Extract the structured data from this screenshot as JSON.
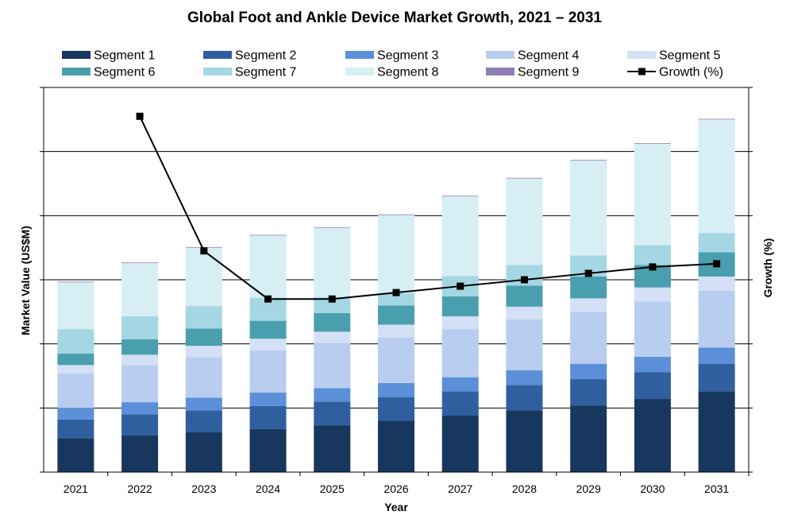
{
  "chart_data": {
    "type": "bar",
    "stacked": true,
    "title": "Global Foot and Ankle Device Market Growth, 2021 – 2031",
    "xlabel": "Year",
    "ylabel": "Market Value (US$M)",
    "y2label": "Growth (%)",
    "categories": [
      "2021",
      "2022",
      "2023",
      "2024",
      "2025",
      "2026",
      "2027",
      "2028",
      "2029",
      "2030",
      "2031"
    ],
    "ylim": [
      0,
      600
    ],
    "y2lim": [
      0,
      12
    ],
    "y_tick_labels_shown": false,
    "grid": true,
    "legend_position": "top",
    "series": [
      {
        "name": "Segment 1",
        "color": "#17375e",
        "values": [
          53,
          57,
          62,
          67,
          73,
          80,
          88,
          96,
          104,
          114,
          126
        ]
      },
      {
        "name": "Segment 2",
        "color": "#2f5f9e",
        "values": [
          29,
          33,
          34,
          36,
          37,
          37,
          38,
          40,
          41,
          42,
          43
        ]
      },
      {
        "name": "Segment 3",
        "color": "#5b8fd8",
        "values": [
          18,
          19,
          20,
          21,
          21,
          22,
          22,
          23,
          24,
          24,
          25
        ]
      },
      {
        "name": "Segment 4",
        "color": "#b8cdef",
        "values": [
          54,
          58,
          63,
          66,
          69,
          71,
          75,
          79,
          81,
          86,
          89
        ]
      },
      {
        "name": "Segment 5",
        "color": "#d3e0f5",
        "values": [
          13,
          16,
          18,
          18,
          19,
          20,
          20,
          20,
          21,
          22,
          22
        ]
      },
      {
        "name": "Segment 6",
        "color": "#4a9fae",
        "values": [
          18,
          24,
          27,
          28,
          29,
          30,
          31,
          33,
          34,
          35,
          38
        ]
      },
      {
        "name": "Segment 7",
        "color": "#a5d6e3",
        "values": [
          38,
          36,
          35,
          36,
          25,
          19,
          32,
          32,
          33,
          31,
          30
        ]
      },
      {
        "name": "Segment 8",
        "color": "#d8eef5",
        "values": [
          73,
          83,
          91,
          97,
          108,
          122,
          124,
          135,
          148,
          158,
          177
        ]
      },
      {
        "name": "Segment 9",
        "color": "#8e7fb4",
        "values": [
          1,
          1,
          1,
          1,
          1,
          1,
          1,
          1,
          1,
          1,
          1
        ]
      }
    ],
    "line_series": {
      "name": "Growth (%)",
      "color": "#000000",
      "axis": "right",
      "values": [
        null,
        11.1,
        6.9,
        5.4,
        5.4,
        5.6,
        5.8,
        6.0,
        6.2,
        6.4,
        6.5
      ]
    }
  }
}
